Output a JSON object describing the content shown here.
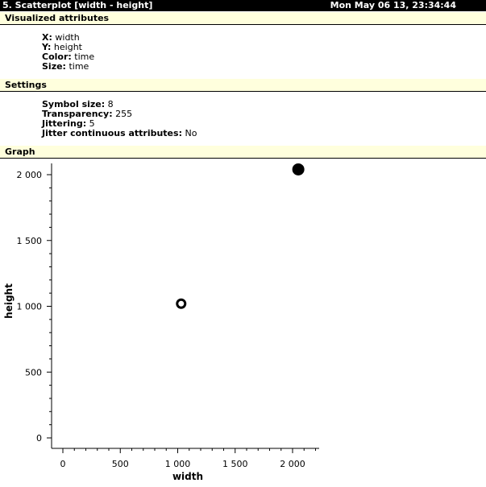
{
  "header": {
    "title": "5. Scatterplot [width - height]",
    "timestamp": "Mon May 06 13, 23:34:44"
  },
  "sections": {
    "visualized": "Visualized attributes",
    "settings": "Settings",
    "graph": "Graph"
  },
  "visualized": [
    {
      "key": "X:",
      "value": "width"
    },
    {
      "key": "Y:",
      "value": "height"
    },
    {
      "key": "Color:",
      "value": "time"
    },
    {
      "key": "Size:",
      "value": "time"
    }
  ],
  "settings": [
    {
      "key": "Symbol size:",
      "value": "8"
    },
    {
      "key": "Transparency:",
      "value": "255"
    },
    {
      "key": "Jittering:",
      "value": "5"
    },
    {
      "key": "Jitter continuous attributes:",
      "value": "No"
    }
  ],
  "chart_data": {
    "type": "scatter",
    "xlabel": "width",
    "ylabel": "height",
    "xlim": [
      -100,
      2250
    ],
    "ylim": [
      -50,
      2050
    ],
    "xticks": [
      0,
      500,
      1000,
      1500,
      2000
    ],
    "xtick_labels": [
      "0",
      "500",
      "1 000",
      "1 500",
      "2 000"
    ],
    "yticks": [
      0,
      500,
      1000,
      1500,
      2000
    ],
    "ytick_labels": [
      "0",
      "500",
      "1 000",
      "1 500",
      "2 000"
    ],
    "grid": false,
    "points": [
      {
        "x": 1030,
        "y": 1020,
        "style": "ring",
        "color": "#000000"
      },
      {
        "x": 2050,
        "y": 2040,
        "style": "filled",
        "color": "#000000"
      }
    ]
  }
}
